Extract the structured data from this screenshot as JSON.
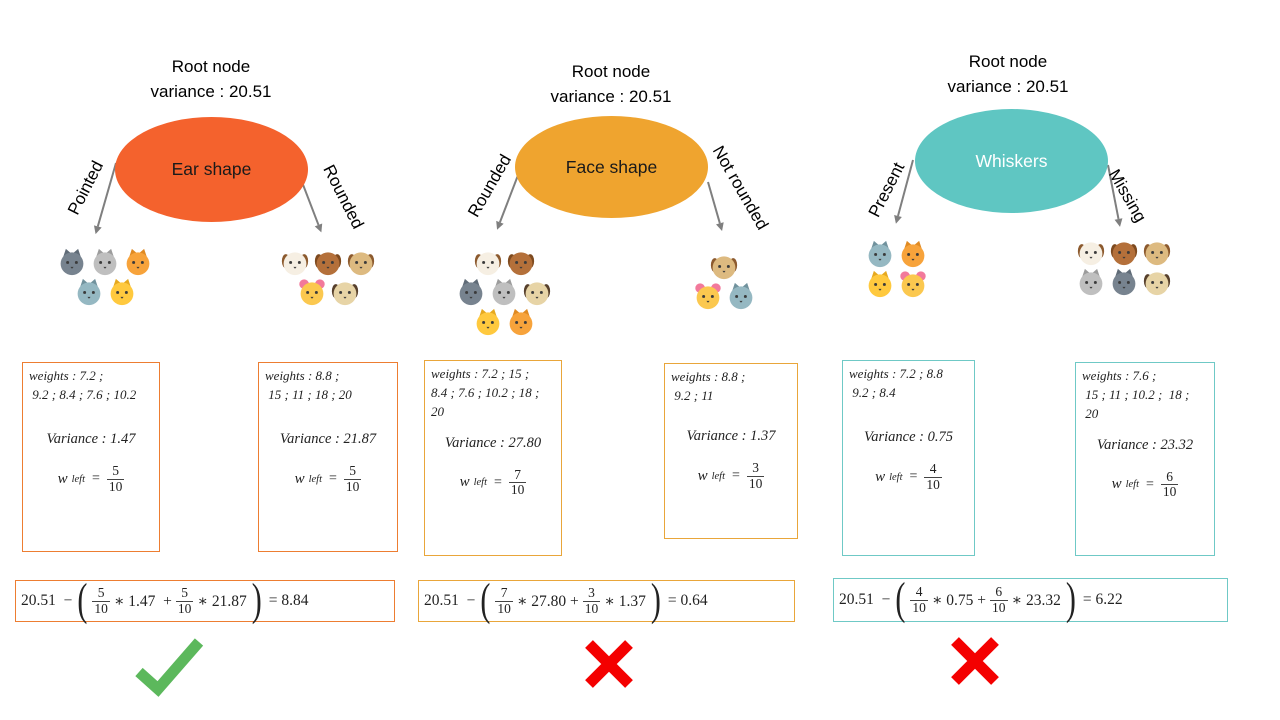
{
  "marks": {
    "check_color": "#5CB85C",
    "cross_color": "#F40000"
  },
  "arrow_color": "#7F7F7F",
  "animal_styles": {
    "cat-dark": {
      "ears": "pointed",
      "head": "#77838F",
      "ear": "#5F6B77"
    },
    "cat-gray": {
      "ears": "pointed",
      "head": "#BFBFBF",
      "ear": "#9C9C9C"
    },
    "cat-orange": {
      "ears": "pointed",
      "head": "#F7A33B",
      "ear": "#E08A22"
    },
    "wolf": {
      "ears": "pointed",
      "head": "#95B8C2",
      "ear": "#71929D"
    },
    "cat-tiger": {
      "ears": "pointed",
      "head": "#FFC93E",
      "ear": "#E6A91F"
    },
    "dog-spotted": {
      "ears": "floppy",
      "head": "#F6EFE3",
      "ear": "#8C5A2E"
    },
    "dog-bernard": {
      "ears": "floppy",
      "head": "#B4703A",
      "ear": "#7E4A1F"
    },
    "dog-puppy": {
      "ears": "floppy",
      "head": "#DDBA80",
      "ear": "#8C5A2E"
    },
    "hamster": {
      "ears": "round",
      "head": "#FBC84F",
      "ear": "#F2799B"
    },
    "dog-pug": {
      "ears": "floppy",
      "head": "#E7D4A6",
      "ear": "#57402C"
    }
  },
  "columns": [
    {
      "root_line1": "Root node",
      "root_line2": "variance : 20.51",
      "node": {
        "label": "Ear shape",
        "fill": "#F4622D",
        "text_color": "#1A1A1A"
      },
      "accent": "#ED7D31",
      "left": {
        "label": "Pointed",
        "animal_rows": [
          [
            "cat-dark",
            "cat-gray",
            "cat-orange"
          ],
          [
            "wolf",
            "cat-tiger"
          ]
        ]
      },
      "right": {
        "label": "Rounded",
        "animal_rows": [
          [
            "dog-spotted",
            "dog-bernard",
            "dog-puppy"
          ],
          [
            "hamster",
            "dog-pug"
          ]
        ]
      },
      "left_box": {
        "lines": [
          "weights : 7.2 ;",
          " 9.2 ; 8.4 ; 7.6 ; 10.2"
        ],
        "variance": "Variance : 1.47",
        "w_sup": "left",
        "w_num": "5",
        "w_den": "10"
      },
      "right_box": {
        "lines": [
          "weights : 8.8 ;",
          " 15 ; 11 ; 18 ; 20"
        ],
        "variance": "Variance : 21.87",
        "w_sup": "left",
        "w_num": "5",
        "w_den": "10"
      },
      "formula": {
        "lead": "20.51  −",
        "f1n": "5",
        "f1d": "10",
        "t1": "∗ 1.47  +",
        "f2n": "5",
        "f2d": "10",
        "t2": "∗ 21.87",
        "result": "= 8.84"
      },
      "mark": "check"
    },
    {
      "root_line1": "Root node",
      "root_line2": "variance : 20.51",
      "node": {
        "label": "Face shape",
        "fill": "#EFA42F",
        "text_color": "#1A1A1A"
      },
      "accent": "#E9A63A",
      "left": {
        "label": "Rounded",
        "animal_rows": [
          [
            "dog-spotted",
            "dog-bernard"
          ],
          [
            "cat-dark",
            "cat-gray",
            "dog-pug"
          ],
          [
            "cat-tiger",
            "cat-orange"
          ]
        ]
      },
      "right": {
        "label": "Not rounded",
        "animal_rows": [
          [
            "dog-puppy"
          ],
          [
            "hamster",
            "wolf"
          ]
        ]
      },
      "left_box": {
        "lines": [
          "weights : 7.2 ; 15 ;",
          "8.4 ; 7.6 ; 10.2 ; 18 ;",
          "20"
        ],
        "variance": "Variance : 27.80",
        "w_sup": "left",
        "w_num": "7",
        "w_den": "10"
      },
      "right_box": {
        "lines": [
          "weights : 8.8 ;",
          " 9.2 ; 11"
        ],
        "variance": "Variance : 1.37",
        "w_sup": "left",
        "w_num": "3",
        "w_den": "10"
      },
      "formula": {
        "lead": "20.51  −",
        "f1n": "7",
        "f1d": "10",
        "t1": "∗ 27.80 +",
        "f2n": "3",
        "f2d": "10",
        "t2": "∗ 1.37",
        "result": "= 0.64"
      },
      "mark": "cross"
    },
    {
      "root_line1": "Root node",
      "root_line2": "variance : 20.51",
      "node": {
        "label": "Whiskers",
        "fill": "#5FC6C2",
        "text_color": "#FFFFFF"
      },
      "accent": "#6FC9C6",
      "left": {
        "label": "Present",
        "animal_rows": [
          [
            "wolf",
            "cat-orange"
          ],
          [
            "cat-tiger",
            "hamster"
          ]
        ]
      },
      "right": {
        "label": "Missing",
        "animal_rows": [
          [
            "dog-spotted",
            "dog-bernard",
            "dog-puppy"
          ],
          [
            "cat-gray",
            "cat-dark",
            "dog-pug"
          ]
        ]
      },
      "left_box": {
        "lines": [
          "weights : 7.2 ; 8.8",
          " 9.2 ; 8.4"
        ],
        "variance": "Variance : 0.75",
        "w_sup": "left",
        "w_num": "4",
        "w_den": "10"
      },
      "right_box": {
        "lines": [
          "weights : 7.6 ;",
          " 15 ; 11 ; 10.2 ;  18 ;",
          " 20"
        ],
        "variance": "Variance : 23.32",
        "w_sup": "left",
        "w_num": "6",
        "w_den": "10"
      },
      "formula": {
        "lead": "20.51  −",
        "f1n": "4",
        "f1d": "10",
        "t1": "∗ 0.75 +",
        "f2n": "6",
        "f2d": "10",
        "t2": "∗ 23.32",
        "result": "= 6.22"
      },
      "mark": "cross"
    }
  ]
}
